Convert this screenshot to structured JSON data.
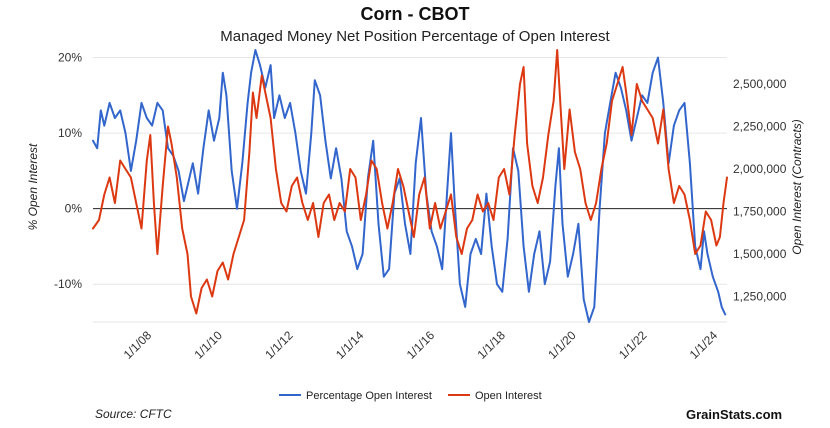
{
  "chart_data": {
    "type": "line",
    "title": "Corn - CBOT",
    "subtitle": "Managed Money Net Position Percentage of Open Interest",
    "ylabel_left": "% Open Interest",
    "ylabel_right": "Open Interest (Contracts)",
    "ylim_left": [
      -15,
      21
    ],
    "ylim_right": [
      1100000,
      2700000
    ],
    "x_range": [
      2006.33,
      2024.25
    ],
    "y_ticks_left": [
      {
        "value": 20,
        "label": "20%"
      },
      {
        "value": 10,
        "label": "10%"
      },
      {
        "value": 0,
        "label": "0%"
      },
      {
        "value": -10,
        "label": "-10%"
      }
    ],
    "y_ticks_right": [
      {
        "value": 2500000,
        "label": "2,500,000"
      },
      {
        "value": 2250000,
        "label": "2,250,000"
      },
      {
        "value": 2000000,
        "label": "2,000,000"
      },
      {
        "value": 1750000,
        "label": "1,750,000"
      },
      {
        "value": 1500000,
        "label": "1,500,000"
      },
      {
        "value": 1250000,
        "label": "1,250,000"
      }
    ],
    "x_ticks": [
      {
        "value": 2008,
        "label": "1/1/08"
      },
      {
        "value": 2010,
        "label": "1/1/10"
      },
      {
        "value": 2012,
        "label": "1/1/12"
      },
      {
        "value": 2014,
        "label": "1/1/14"
      },
      {
        "value": 2016,
        "label": "1/1/16"
      },
      {
        "value": 2018,
        "label": "1/1/18"
      },
      {
        "value": 2020,
        "label": "1/1/20"
      },
      {
        "value": 2022,
        "label": "1/1/22"
      },
      {
        "value": 2024,
        "label": "1/1/24"
      }
    ],
    "series": [
      {
        "name": "Percentage Open Interest",
        "axis": "left",
        "color": "#3366cc",
        "points": [
          [
            2006.33,
            9
          ],
          [
            2006.45,
            8
          ],
          [
            2006.55,
            13
          ],
          [
            2006.65,
            11
          ],
          [
            2006.8,
            14
          ],
          [
            2006.95,
            12
          ],
          [
            2007.1,
            13
          ],
          [
            2007.25,
            10
          ],
          [
            2007.4,
            5
          ],
          [
            2007.55,
            9
          ],
          [
            2007.7,
            14
          ],
          [
            2007.85,
            12
          ],
          [
            2008.0,
            11
          ],
          [
            2008.15,
            14
          ],
          [
            2008.3,
            13
          ],
          [
            2008.45,
            8
          ],
          [
            2008.6,
            7
          ],
          [
            2008.75,
            5
          ],
          [
            2008.9,
            1
          ],
          [
            2009.0,
            3
          ],
          [
            2009.15,
            6
          ],
          [
            2009.3,
            2
          ],
          [
            2009.45,
            8
          ],
          [
            2009.6,
            13
          ],
          [
            2009.75,
            9
          ],
          [
            2009.9,
            12
          ],
          [
            2010.0,
            18
          ],
          [
            2010.1,
            15
          ],
          [
            2010.25,
            5
          ],
          [
            2010.4,
            0
          ],
          [
            2010.55,
            6
          ],
          [
            2010.7,
            14
          ],
          [
            2010.8,
            18
          ],
          [
            2010.92,
            21
          ],
          [
            2011.05,
            19
          ],
          [
            2011.2,
            16
          ],
          [
            2011.35,
            19
          ],
          [
            2011.45,
            12
          ],
          [
            2011.6,
            15
          ],
          [
            2011.75,
            12
          ],
          [
            2011.9,
            14
          ],
          [
            2012.05,
            10
          ],
          [
            2012.2,
            5
          ],
          [
            2012.35,
            2
          ],
          [
            2012.5,
            10
          ],
          [
            2012.6,
            17
          ],
          [
            2012.75,
            15
          ],
          [
            2012.9,
            9
          ],
          [
            2013.05,
            4
          ],
          [
            2013.2,
            8
          ],
          [
            2013.35,
            4
          ],
          [
            2013.5,
            -3
          ],
          [
            2013.65,
            -5
          ],
          [
            2013.8,
            -8
          ],
          [
            2013.95,
            -6
          ],
          [
            2014.1,
            4
          ],
          [
            2014.25,
            9
          ],
          [
            2014.4,
            -2
          ],
          [
            2014.55,
            -9
          ],
          [
            2014.7,
            -8
          ],
          [
            2014.85,
            2
          ],
          [
            2015.0,
            4
          ],
          [
            2015.15,
            -2
          ],
          [
            2015.3,
            -6
          ],
          [
            2015.45,
            6
          ],
          [
            2015.6,
            12
          ],
          [
            2015.75,
            2
          ],
          [
            2015.9,
            -3
          ],
          [
            2016.05,
            -5
          ],
          [
            2016.2,
            -8
          ],
          [
            2016.35,
            3
          ],
          [
            2016.45,
            10
          ],
          [
            2016.55,
            1
          ],
          [
            2016.7,
            -10
          ],
          [
            2016.85,
            -13
          ],
          [
            2017.0,
            -6
          ],
          [
            2017.15,
            -4
          ],
          [
            2017.3,
            -6
          ],
          [
            2017.45,
            2
          ],
          [
            2017.6,
            -5
          ],
          [
            2017.75,
            -10
          ],
          [
            2017.9,
            -11
          ],
          [
            2018.05,
            -4
          ],
          [
            2018.2,
            8
          ],
          [
            2018.35,
            5
          ],
          [
            2018.5,
            -5
          ],
          [
            2018.65,
            -11
          ],
          [
            2018.8,
            -6
          ],
          [
            2018.95,
            -3
          ],
          [
            2019.1,
            -10
          ],
          [
            2019.25,
            -7
          ],
          [
            2019.4,
            3
          ],
          [
            2019.5,
            8
          ],
          [
            2019.6,
            -2
          ],
          [
            2019.75,
            -9
          ],
          [
            2019.9,
            -6
          ],
          [
            2020.05,
            -2
          ],
          [
            2020.2,
            -12
          ],
          [
            2020.35,
            -15
          ],
          [
            2020.5,
            -13
          ],
          [
            2020.65,
            0
          ],
          [
            2020.8,
            10
          ],
          [
            2020.95,
            14
          ],
          [
            2021.1,
            18
          ],
          [
            2021.25,
            16
          ],
          [
            2021.4,
            13
          ],
          [
            2021.55,
            9
          ],
          [
            2021.7,
            12
          ],
          [
            2021.85,
            15
          ],
          [
            2022.0,
            14
          ],
          [
            2022.15,
            18
          ],
          [
            2022.3,
            20
          ],
          [
            2022.45,
            14
          ],
          [
            2022.6,
            6
          ],
          [
            2022.75,
            11
          ],
          [
            2022.9,
            13
          ],
          [
            2023.05,
            14
          ],
          [
            2023.2,
            6
          ],
          [
            2023.35,
            -5
          ],
          [
            2023.5,
            -8
          ],
          [
            2023.6,
            -3
          ],
          [
            2023.7,
            -6
          ],
          [
            2023.85,
            -9
          ],
          [
            2024.0,
            -11
          ],
          [
            2024.1,
            -13
          ],
          [
            2024.2,
            -14
          ]
        ]
      },
      {
        "name": "Open Interest",
        "axis": "right",
        "color": "#dc3912",
        "points": [
          [
            2006.33,
            1650000
          ],
          [
            2006.5,
            1700000
          ],
          [
            2006.65,
            1850000
          ],
          [
            2006.8,
            1950000
          ],
          [
            2006.95,
            1800000
          ],
          [
            2007.1,
            2050000
          ],
          [
            2007.25,
            2000000
          ],
          [
            2007.4,
            1950000
          ],
          [
            2007.55,
            1800000
          ],
          [
            2007.7,
            1650000
          ],
          [
            2007.85,
            2050000
          ],
          [
            2007.95,
            2200000
          ],
          [
            2008.05,
            1800000
          ],
          [
            2008.15,
            1500000
          ],
          [
            2008.3,
            1900000
          ],
          [
            2008.45,
            2250000
          ],
          [
            2008.55,
            2150000
          ],
          [
            2008.7,
            1950000
          ],
          [
            2008.85,
            1650000
          ],
          [
            2009.0,
            1500000
          ],
          [
            2009.1,
            1250000
          ],
          [
            2009.25,
            1150000
          ],
          [
            2009.4,
            1300000
          ],
          [
            2009.55,
            1350000
          ],
          [
            2009.7,
            1250000
          ],
          [
            2009.85,
            1400000
          ],
          [
            2010.0,
            1450000
          ],
          [
            2010.15,
            1350000
          ],
          [
            2010.3,
            1500000
          ],
          [
            2010.45,
            1600000
          ],
          [
            2010.6,
            1700000
          ],
          [
            2010.75,
            2100000
          ],
          [
            2010.85,
            2450000
          ],
          [
            2010.95,
            2300000
          ],
          [
            2011.1,
            2550000
          ],
          [
            2011.2,
            2450000
          ],
          [
            2011.35,
            2300000
          ],
          [
            2011.5,
            2000000
          ],
          [
            2011.65,
            1800000
          ],
          [
            2011.8,
            1750000
          ],
          [
            2011.95,
            1900000
          ],
          [
            2012.1,
            1950000
          ],
          [
            2012.25,
            1800000
          ],
          [
            2012.4,
            1700000
          ],
          [
            2012.55,
            1800000
          ],
          [
            2012.7,
            1600000
          ],
          [
            2012.85,
            1800000
          ],
          [
            2013.0,
            1850000
          ],
          [
            2013.15,
            1700000
          ],
          [
            2013.3,
            1800000
          ],
          [
            2013.45,
            1750000
          ],
          [
            2013.6,
            2000000
          ],
          [
            2013.75,
            1950000
          ],
          [
            2013.9,
            1700000
          ],
          [
            2014.05,
            1850000
          ],
          [
            2014.2,
            2050000
          ],
          [
            2014.35,
            2000000
          ],
          [
            2014.5,
            1800000
          ],
          [
            2014.65,
            1650000
          ],
          [
            2014.8,
            1800000
          ],
          [
            2014.95,
            2000000
          ],
          [
            2015.1,
            1900000
          ],
          [
            2015.25,
            1750000
          ],
          [
            2015.4,
            1600000
          ],
          [
            2015.55,
            1850000
          ],
          [
            2015.7,
            1950000
          ],
          [
            2015.85,
            1650000
          ],
          [
            2016.0,
            1800000
          ],
          [
            2016.15,
            1650000
          ],
          [
            2016.3,
            1750000
          ],
          [
            2016.45,
            1850000
          ],
          [
            2016.6,
            1600000
          ],
          [
            2016.75,
            1500000
          ],
          [
            2016.9,
            1650000
          ],
          [
            2017.05,
            1700000
          ],
          [
            2017.2,
            1850000
          ],
          [
            2017.35,
            1750000
          ],
          [
            2017.5,
            1800000
          ],
          [
            2017.65,
            1700000
          ],
          [
            2017.8,
            1950000
          ],
          [
            2017.95,
            2000000
          ],
          [
            2018.1,
            1850000
          ],
          [
            2018.25,
            2200000
          ],
          [
            2018.4,
            2500000
          ],
          [
            2018.5,
            2600000
          ],
          [
            2018.6,
            2150000
          ],
          [
            2018.75,
            1900000
          ],
          [
            2018.9,
            1800000
          ],
          [
            2019.05,
            1950000
          ],
          [
            2019.2,
            2200000
          ],
          [
            2019.35,
            2400000
          ],
          [
            2019.45,
            2700000
          ],
          [
            2019.55,
            2350000
          ],
          [
            2019.65,
            2000000
          ],
          [
            2019.8,
            2350000
          ],
          [
            2019.95,
            2100000
          ],
          [
            2020.1,
            2000000
          ],
          [
            2020.25,
            1800000
          ],
          [
            2020.4,
            1700000
          ],
          [
            2020.55,
            1800000
          ],
          [
            2020.7,
            2000000
          ],
          [
            2020.85,
            2150000
          ],
          [
            2021.0,
            2400000
          ],
          [
            2021.15,
            2500000
          ],
          [
            2021.3,
            2600000
          ],
          [
            2021.4,
            2450000
          ],
          [
            2021.55,
            2200000
          ],
          [
            2021.7,
            2500000
          ],
          [
            2021.85,
            2400000
          ],
          [
            2022.0,
            2350000
          ],
          [
            2022.15,
            2300000
          ],
          [
            2022.3,
            2150000
          ],
          [
            2022.45,
            2350000
          ],
          [
            2022.6,
            2000000
          ],
          [
            2022.75,
            1800000
          ],
          [
            2022.9,
            1900000
          ],
          [
            2023.05,
            1850000
          ],
          [
            2023.2,
            1700000
          ],
          [
            2023.35,
            1500000
          ],
          [
            2023.5,
            1550000
          ],
          [
            2023.65,
            1750000
          ],
          [
            2023.8,
            1700000
          ],
          [
            2023.95,
            1550000
          ],
          [
            2024.05,
            1600000
          ],
          [
            2024.15,
            1800000
          ],
          [
            2024.25,
            1950000
          ]
        ]
      }
    ],
    "legend_position": "bottom"
  },
  "source_label": "Source: CFTC",
  "brand_label": "GrainStats.com"
}
